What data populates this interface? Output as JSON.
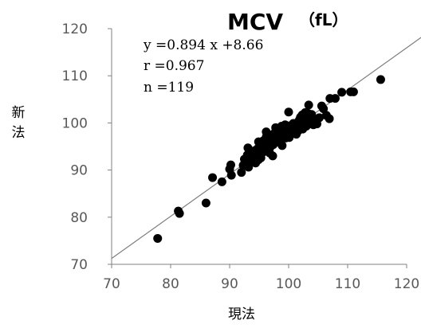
{
  "chart_data": {
    "type": "scatter",
    "title": "MCV",
    "title_unit": "（fL）",
    "xlabel": "現法",
    "ylabel": "新法",
    "xlim": [
      70,
      120
    ],
    "ylim": [
      70,
      120
    ],
    "x_ticks": [
      "70",
      "80",
      "90",
      "100",
      "110",
      "120"
    ],
    "y_ticks": [
      "70",
      "80",
      "90",
      "100",
      "110",
      "120"
    ],
    "grid": false,
    "legend": "none",
    "annotations": [
      "y =0.894 x +8.66",
      "r =0.967",
      "n =119"
    ],
    "regression": {
      "slope": 0.894,
      "intercept": 8.66
    },
    "colors": {
      "points": "#000000",
      "line": "#7f7f7f",
      "axis": "#808080"
    },
    "points": [
      [
        77.8,
        75.5
      ],
      [
        81.3,
        81.3
      ],
      [
        81.5,
        80.8
      ],
      [
        86.0,
        83.0
      ],
      [
        87.1,
        88.4
      ],
      [
        88.7,
        87.5
      ],
      [
        90.0,
        90.2
      ],
      [
        90.2,
        91.1
      ],
      [
        90.3,
        88.9
      ],
      [
        92.0,
        89.5
      ],
      [
        92.3,
        91.0
      ],
      [
        92.5,
        92.3
      ],
      [
        92.8,
        91.5
      ],
      [
        93.0,
        93.2
      ],
      [
        93.2,
        90.6
      ],
      [
        93.4,
        92.0
      ],
      [
        93.5,
        92.8
      ],
      [
        93.7,
        93.8
      ],
      [
        93.8,
        91.8
      ],
      [
        94.0,
        92.5
      ],
      [
        94.1,
        93.4
      ],
      [
        94.2,
        94.1
      ],
      [
        94.4,
        91.5
      ],
      [
        94.5,
        92.9
      ],
      [
        94.6,
        93.6
      ],
      [
        94.7,
        94.5
      ],
      [
        94.9,
        92.2
      ],
      [
        95.0,
        93.1
      ],
      [
        95.1,
        94.0
      ],
      [
        95.2,
        95.0
      ],
      [
        95.3,
        92.6
      ],
      [
        95.4,
        93.5
      ],
      [
        95.5,
        94.4
      ],
      [
        95.6,
        95.3
      ],
      [
        95.7,
        96.2
      ],
      [
        95.8,
        93.9
      ],
      [
        95.9,
        94.7
      ],
      [
        96.0,
        95.6
      ],
      [
        96.1,
        96.5
      ],
      [
        96.2,
        97.0
      ],
      [
        96.3,
        94.2
      ],
      [
        96.4,
        95.1
      ],
      [
        96.5,
        96.0
      ],
      [
        96.6,
        96.8
      ],
      [
        96.7,
        97.5
      ],
      [
        96.8,
        93.6
      ],
      [
        96.9,
        94.9
      ],
      [
        97.0,
        95.8
      ],
      [
        97.1,
        96.6
      ],
      [
        97.2,
        97.4
      ],
      [
        97.3,
        93.0
      ],
      [
        97.4,
        95.4
      ],
      [
        97.5,
        96.3
      ],
      [
        97.6,
        97.1
      ],
      [
        97.7,
        98.0
      ],
      [
        97.9,
        95.9
      ],
      [
        98.0,
        96.9
      ],
      [
        98.1,
        97.7
      ],
      [
        98.2,
        98.4
      ],
      [
        98.4,
        96.5
      ],
      [
        98.5,
        97.3
      ],
      [
        98.6,
        98.2
      ],
      [
        98.8,
        99.3
      ],
      [
        99.0,
        96.9
      ],
      [
        99.1,
        97.8
      ],
      [
        99.2,
        98.6
      ],
      [
        99.4,
        99.6
      ],
      [
        99.5,
        96.8
      ],
      [
        99.6,
        97.6
      ],
      [
        99.8,
        98.5
      ],
      [
        100.0,
        102.3
      ],
      [
        100.1,
        96.9
      ],
      [
        100.2,
        99.4
      ],
      [
        100.4,
        97.9
      ],
      [
        100.6,
        98.8
      ],
      [
        100.8,
        99.9
      ],
      [
        101.0,
        98.2
      ],
      [
        101.2,
        99.1
      ],
      [
        101.4,
        100.0
      ],
      [
        101.6,
        98.3
      ],
      [
        101.7,
        99.4
      ],
      [
        101.8,
        100.6
      ],
      [
        102.0,
        101.2
      ],
      [
        102.1,
        99.6
      ],
      [
        102.2,
        100.4
      ],
      [
        102.3,
        101.7
      ],
      [
        102.4,
        98.7
      ],
      [
        102.5,
        99.9
      ],
      [
        102.6,
        100.8
      ],
      [
        102.7,
        101.6
      ],
      [
        102.8,
        102.2
      ],
      [
        103.0,
        99.3
      ],
      [
        103.1,
        100.3
      ],
      [
        103.2,
        101.3
      ],
      [
        103.3,
        102.0
      ],
      [
        103.4,
        103.8
      ],
      [
        103.5,
        99.8
      ],
      [
        103.7,
        100.9
      ],
      [
        103.9,
        101.8
      ],
      [
        104.2,
        99.6
      ],
      [
        104.5,
        100.7
      ],
      [
        104.8,
        99.8
      ],
      [
        105.2,
        101.1
      ],
      [
        105.6,
        103.6
      ],
      [
        105.9,
        103.0
      ],
      [
        106.4,
        101.6
      ],
      [
        106.9,
        100.9
      ],
      [
        107.0,
        105.2
      ],
      [
        107.9,
        105.2
      ],
      [
        109.0,
        106.5
      ],
      [
        110.5,
        106.6
      ],
      [
        111.0,
        106.6
      ],
      [
        115.6,
        109.2
      ],
      [
        101.3,
        97.6
      ],
      [
        98.9,
        95.2
      ],
      [
        97.8,
        99.0
      ],
      [
        96.2,
        98.1
      ],
      [
        94.9,
        96.0
      ],
      [
        93.1,
        94.7
      ]
    ]
  }
}
